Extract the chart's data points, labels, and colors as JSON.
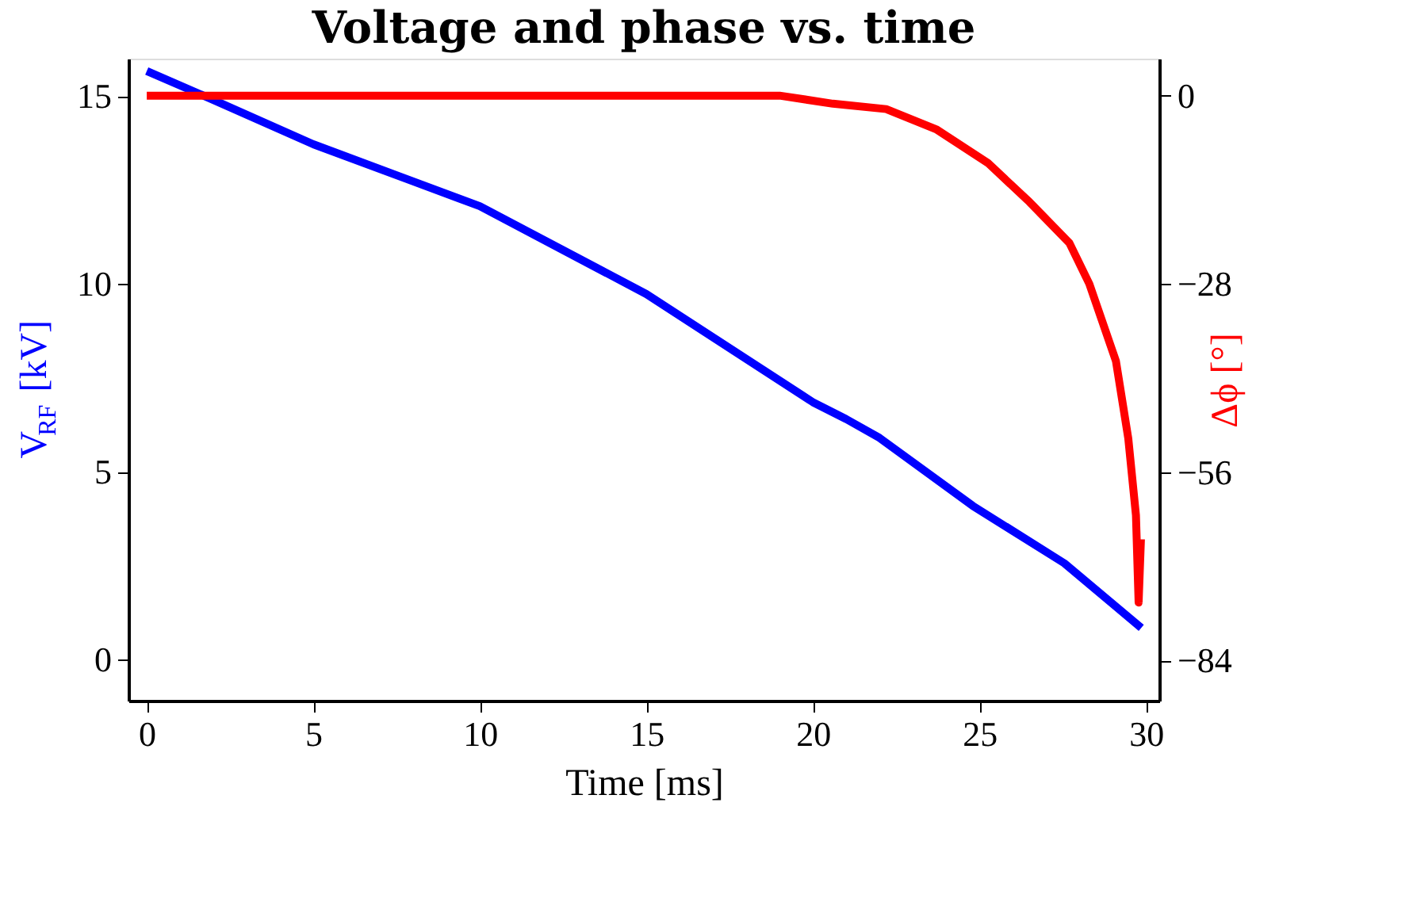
{
  "chart_data": {
    "type": "line",
    "title": "Voltage and phase vs. time",
    "xlabel": "Time [ms]",
    "ylabel": "V$_{RF}$ [kV]",
    "y2label": "Δϕ [°]",
    "xlim": [
      -0.55,
      30.4
    ],
    "xticks": [
      0,
      5,
      10,
      15,
      20,
      25,
      30
    ],
    "ylim": [
      -1.1,
      16
    ],
    "yticks": [
      0,
      5,
      10,
      15
    ],
    "y2lim": [
      -90,
      5.5
    ],
    "y2ticks": [
      0,
      -28,
      -56,
      -84
    ],
    "grid": false,
    "line_style": "solid",
    "marker": "none",
    "series": [
      {
        "color": "#0000ff",
        "x": [
          0,
          2,
          5,
          10,
          15,
          20,
          21,
          22,
          24.8,
          27.55,
          29.86
        ],
        "values": [
          15.67,
          14.9,
          13.72,
          12.07,
          9.73,
          6.85,
          6.4,
          5.9,
          4.09,
          2.56,
          0.84
        ]
      },
      {
        "color": "#ff0000",
        "axis": "y2",
        "x": [
          0,
          5,
          10,
          15,
          19,
          20.6,
          22.2,
          23.7,
          25.25,
          26.5,
          27.7,
          28.3,
          29.1,
          29.47,
          29.7,
          29.78,
          29.85
        ],
        "values": [
          0,
          0,
          0,
          0,
          0,
          -1.2,
          -2.0,
          -5.0,
          -10.0,
          -15.8,
          -21.9,
          -28,
          -39.5,
          -51,
          -62.4,
          -75.4,
          -66
        ]
      }
    ]
  }
}
